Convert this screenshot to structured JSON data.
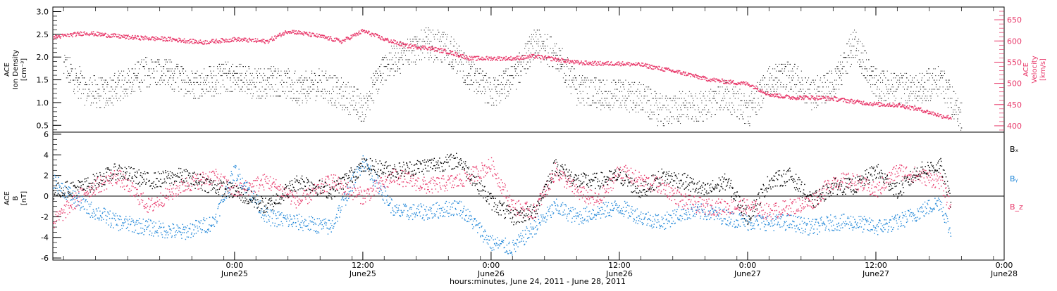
{
  "colors": {
    "black": "#000000",
    "pink": "#e8386a",
    "blue": "#1f86d8"
  },
  "x_axis": {
    "title": "hours:minutes, June 24, 2011 - June 28, 2011",
    "range_hours": [
      -17,
      72
    ],
    "ticks": [
      {
        "time": "0:00",
        "date": "June25",
        "hours": 0
      },
      {
        "time": "12:00",
        "date": "June25",
        "hours": 12
      },
      {
        "time": "0:00",
        "date": "June26",
        "hours": 24
      },
      {
        "time": "12:00",
        "date": "June26",
        "hours": 36
      },
      {
        "time": "0:00",
        "date": "June27",
        "hours": 48
      },
      {
        "time": "12:00",
        "date": "June27",
        "hours": 60
      },
      {
        "time": "0:00",
        "date": "June28",
        "hours": 72
      }
    ]
  },
  "chart_data": [
    {
      "type": "scatter",
      "panel": "top",
      "ylabel_left": [
        "ACE",
        "Ion Density",
        "[cm⁻³]"
      ],
      "ylabel_right": [
        "ACE",
        "Velocity",
        "[km/s]"
      ],
      "ylim_left": [
        0.35,
        3.1
      ],
      "ylim_right": [
        385,
        680
      ],
      "yticks_left": [
        "0.5",
        "1.0",
        "1.5",
        "2.0",
        "2.5",
        "3.0"
      ],
      "yticks_right": [
        "400",
        "450",
        "500",
        "550",
        "600",
        "650"
      ],
      "series": [
        {
          "name": "",
          "color": "black",
          "axis": "left",
          "x_hours": [
            -16,
            -14,
            -12,
            -10,
            -8,
            -6,
            -4,
            -2,
            0,
            2,
            4,
            6,
            8,
            10,
            12,
            14,
            16,
            18,
            20,
            22,
            24,
            26,
            28,
            30,
            32,
            34,
            36,
            38,
            40,
            42,
            44,
            46,
            48,
            50,
            52,
            54,
            56,
            58,
            60,
            62,
            64,
            66,
            68
          ],
          "values": [
            1.8,
            1.3,
            1.2,
            1.5,
            1.7,
            1.6,
            1.4,
            1.5,
            1.6,
            1.4,
            1.5,
            1.3,
            1.4,
            1.2,
            0.9,
            1.8,
            2.1,
            2.3,
            2.2,
            1.6,
            1.2,
            1.5,
            2.3,
            2.1,
            1.3,
            1.2,
            1.2,
            1.1,
            0.8,
            0.9,
            0.9,
            1.2,
            0.8,
            1.5,
            1.6,
            1.2,
            1.4,
            2.3,
            1.4,
            1.3,
            1.3,
            1.5,
            0.7
          ]
        },
        {
          "name": "",
          "color": "pink",
          "axis": "right",
          "x_hours": [
            -17,
            -14,
            -10,
            -6,
            -3,
            0,
            3,
            5,
            8,
            10,
            12,
            14,
            16,
            18,
            20,
            22,
            24,
            26,
            28,
            30,
            32,
            34,
            36,
            38,
            40,
            42,
            44,
            46,
            48,
            50,
            52,
            54,
            56,
            58,
            60,
            62,
            64,
            66,
            67
          ],
          "values": [
            610,
            620,
            610,
            605,
            598,
            605,
            600,
            625,
            612,
            600,
            625,
            605,
            590,
            585,
            575,
            560,
            560,
            560,
            565,
            558,
            550,
            548,
            548,
            545,
            535,
            525,
            512,
            505,
            500,
            475,
            468,
            468,
            465,
            458,
            452,
            450,
            440,
            425,
            420
          ]
        }
      ]
    },
    {
      "type": "scatter",
      "panel": "bottom",
      "ylabel_left": [
        "ACE",
        "B",
        "[nT]"
      ],
      "ylim": [
        -6.2,
        6.2
      ],
      "yticks": [
        "-6",
        "-4",
        "-2",
        "0",
        "2",
        "4",
        "6"
      ],
      "zero_line": true,
      "legend_labels": [
        "Bₓ",
        "Bᵧ",
        "B_z"
      ],
      "series": [
        {
          "name": "Bₓ",
          "color": "black",
          "x_hours": [
            -17,
            -14,
            -11,
            -8,
            -5,
            -2,
            0,
            3,
            6,
            9,
            12,
            15,
            18,
            21,
            24,
            26,
            28,
            30,
            32,
            34,
            36,
            38,
            40,
            42,
            44,
            46,
            48,
            50,
            52,
            54,
            56,
            58,
            60,
            62,
            64,
            66,
            67
          ],
          "values": [
            0.5,
            1.0,
            2.5,
            1.5,
            2.0,
            1.0,
            0.5,
            -1.0,
            1.5,
            0.5,
            3.0,
            2.5,
            3.0,
            3.5,
            -0.5,
            -2.0,
            -1.5,
            3.0,
            1.5,
            1.5,
            2.0,
            0.5,
            2.0,
            1.5,
            0.5,
            1.5,
            -2.0,
            1.5,
            2.0,
            -0.5,
            1.0,
            1.0,
            2.5,
            0.5,
            2.5,
            3.0,
            -0.5
          ]
        },
        {
          "name": "Bᵧ",
          "color": "blue",
          "x_hours": [
            -17,
            -14,
            -11,
            -8,
            -5,
            -2,
            0,
            3,
            6,
            9,
            12,
            15,
            18,
            21,
            24,
            26,
            28,
            30,
            32,
            34,
            36,
            38,
            40,
            42,
            44,
            46,
            48,
            50,
            52,
            54,
            56,
            58,
            60,
            62,
            64,
            66,
            67
          ],
          "values": [
            1.5,
            -1.0,
            -2.5,
            -3.0,
            -3.5,
            -2.5,
            2.5,
            -2.0,
            -2.5,
            -3.0,
            3.5,
            -1.5,
            -1.5,
            -1.0,
            -4.5,
            -5.0,
            -3.0,
            -1.0,
            -2.0,
            -1.5,
            -1.0,
            -2.0,
            -2.5,
            -1.5,
            -1.5,
            -2.0,
            -2.5,
            -2.5,
            -2.5,
            -3.0,
            -2.5,
            -2.5,
            -3.0,
            -2.5,
            -1.5,
            -0.5,
            -3.7
          ]
        },
        {
          "name": "B_z",
          "color": "pink",
          "x_hours": [
            -17,
            -14,
            -11,
            -8,
            -5,
            -2,
            0,
            3,
            6,
            9,
            12,
            15,
            18,
            21,
            24,
            26,
            28,
            30,
            32,
            34,
            36,
            38,
            40,
            42,
            44,
            46,
            48,
            50,
            52,
            54,
            56,
            58,
            60,
            62,
            64,
            66,
            67
          ],
          "values": [
            -2.5,
            0.5,
            2.0,
            -1.0,
            1.0,
            2.0,
            0.5,
            1.5,
            -0.5,
            1.5,
            0.0,
            2.0,
            1.0,
            1.5,
            3.0,
            -1.0,
            -1.5,
            2.5,
            0.5,
            -0.5,
            2.5,
            1.5,
            1.0,
            -0.5,
            -1.0,
            -1.0,
            -1.0,
            -1.5,
            -1.0,
            -0.5,
            1.5,
            1.5,
            0.5,
            2.5,
            2.0,
            1.5,
            -1.2
          ]
        }
      ]
    }
  ]
}
